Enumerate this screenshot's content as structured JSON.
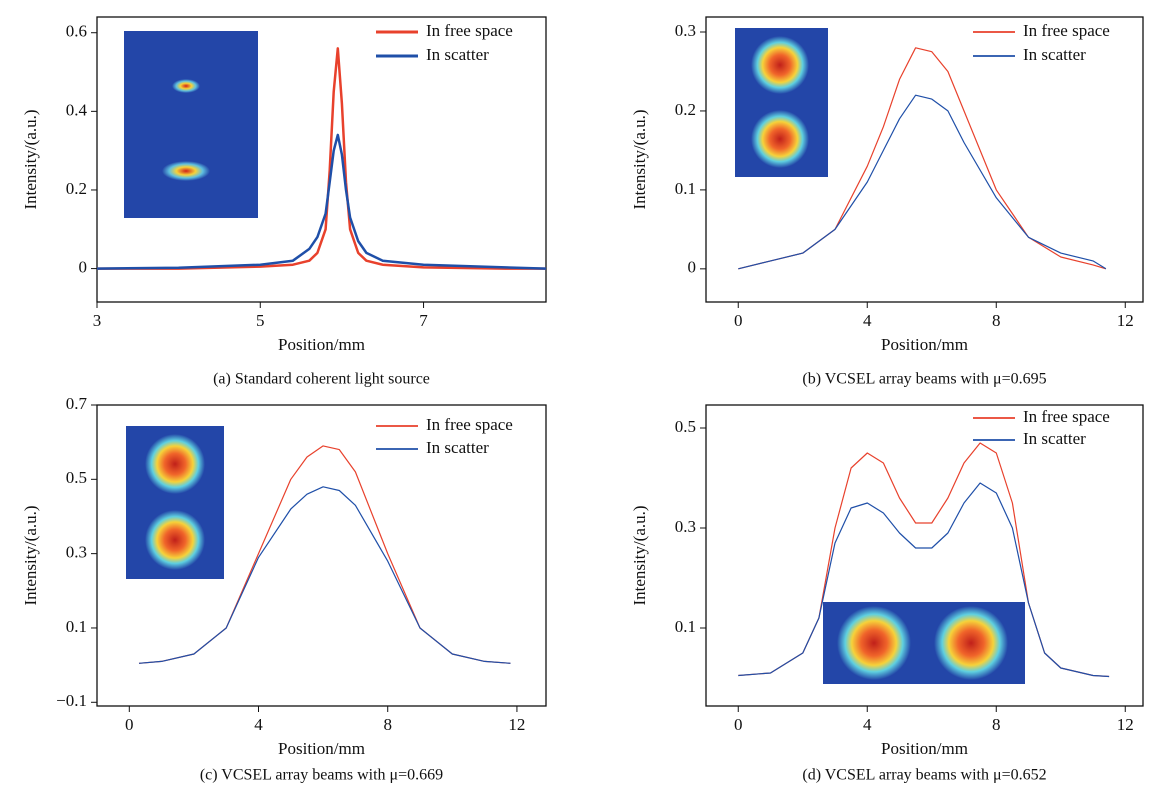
{
  "chart_data": [
    {
      "type": "line",
      "caption": "(a) Standard coherent light source",
      "xlabel": "Position/mm",
      "ylabel": "Intensity/(a.u.)",
      "xlim": [
        3,
        8.5
      ],
      "xticks": [
        3,
        5,
        7
      ],
      "ylim": [
        -0.085,
        0.64
      ],
      "yticks": [
        0,
        0.2,
        0.4,
        0.6
      ],
      "legend": "upper right",
      "line_width": 2.5,
      "x": [
        3,
        4,
        5,
        5.4,
        5.6,
        5.7,
        5.8,
        5.85,
        5.9,
        5.95,
        6.0,
        6.05,
        6.1,
        6.2,
        6.3,
        6.5,
        7,
        8,
        8.5
      ],
      "series": [
        {
          "name": "In free space",
          "color": "#e8412c",
          "values": [
            0,
            0,
            0.005,
            0.01,
            0.02,
            0.04,
            0.1,
            0.25,
            0.45,
            0.56,
            0.42,
            0.22,
            0.1,
            0.04,
            0.02,
            0.01,
            0.003,
            0,
            0
          ]
        },
        {
          "name": "In scatter",
          "color": "#1f4fa8",
          "values": [
            0,
            0.002,
            0.01,
            0.02,
            0.05,
            0.08,
            0.14,
            0.22,
            0.3,
            0.34,
            0.29,
            0.2,
            0.13,
            0.07,
            0.04,
            0.02,
            0.01,
            0.003,
            0
          ]
        }
      ]
    },
    {
      "type": "line",
      "caption": "(b) VCSEL array beams with μ=0.695",
      "xlabel": "Position/mm",
      "ylabel": "Intensity/(a.u.)",
      "xlim": [
        -1,
        12.55
      ],
      "xticks": [
        0,
        4,
        8,
        12
      ],
      "ylim": [
        -0.042,
        0.319
      ],
      "yticks": [
        0,
        0.1,
        0.2,
        0.3
      ],
      "legend": "upper right",
      "line_width": 1.2,
      "x": [
        0,
        1,
        2,
        3,
        4,
        4.5,
        5,
        5.5,
        6,
        6.5,
        7,
        8,
        9,
        10,
        11,
        11.4
      ],
      "series": [
        {
          "name": "In free space",
          "color": "#e8412c",
          "values": [
            0,
            0.01,
            0.02,
            0.05,
            0.13,
            0.18,
            0.24,
            0.28,
            0.275,
            0.25,
            0.2,
            0.1,
            0.04,
            0.015,
            0.005,
            0
          ]
        },
        {
          "name": "In scatter",
          "color": "#1f4fa8",
          "values": [
            0,
            0.01,
            0.02,
            0.05,
            0.11,
            0.15,
            0.19,
            0.22,
            0.215,
            0.2,
            0.16,
            0.09,
            0.04,
            0.02,
            0.01,
            0
          ]
        }
      ]
    },
    {
      "type": "line",
      "caption": "(c) VCSEL array beams with μ=0.669",
      "xlabel": "Position/mm",
      "ylabel": "Intensity/(a.u.)",
      "xlim": [
        -1,
        12.9
      ],
      "xticks": [
        0,
        4,
        8,
        12
      ],
      "ylim": [
        -0.11,
        0.7
      ],
      "yticks": [
        {
          "value": -0.1,
          "label": "−0.1"
        },
        0.1,
        0.3,
        0.5,
        0.7
      ],
      "legend": "upper right",
      "line_width": 1.2,
      "x": [
        0.3,
        1,
        2,
        3,
        4,
        5,
        5.5,
        6,
        6.5,
        7,
        8,
        9,
        10,
        11,
        11.8
      ],
      "series": [
        {
          "name": "In free space",
          "color": "#e8412c",
          "values": [
            0.005,
            0.01,
            0.03,
            0.1,
            0.3,
            0.5,
            0.56,
            0.59,
            0.58,
            0.52,
            0.3,
            0.1,
            0.03,
            0.01,
            0.005
          ]
        },
        {
          "name": "In scatter",
          "color": "#1f4fa8",
          "values": [
            0.005,
            0.01,
            0.03,
            0.1,
            0.29,
            0.42,
            0.46,
            0.48,
            0.47,
            0.43,
            0.28,
            0.1,
            0.03,
            0.01,
            0.005
          ]
        }
      ]
    },
    {
      "type": "line",
      "caption": "(d) VCSEL array beams with μ=0.652",
      "xlabel": "Position/mm",
      "ylabel": "Intensity/(a.u.)",
      "xlim": [
        -1,
        12.55
      ],
      "xticks": [
        0,
        4,
        8,
        12
      ],
      "ylim": [
        -0.056,
        0.546
      ],
      "yticks": [
        0.1,
        0.3,
        0.5
      ],
      "legend": "upper right",
      "line_width": 1.2,
      "x": [
        0,
        1,
        2,
        2.5,
        3,
        3.5,
        4,
        4.5,
        5,
        5.5,
        6,
        6.5,
        7,
        7.5,
        8,
        8.5,
        9,
        9.5,
        10,
        11,
        11.5
      ],
      "series": [
        {
          "name": "In free space",
          "color": "#e8412c",
          "values": [
            0.005,
            0.01,
            0.05,
            0.12,
            0.3,
            0.42,
            0.45,
            0.43,
            0.36,
            0.31,
            0.31,
            0.36,
            0.43,
            0.47,
            0.45,
            0.35,
            0.15,
            0.05,
            0.02,
            0.005,
            0.003
          ]
        },
        {
          "name": "In scatter",
          "color": "#1f4fa8",
          "values": [
            0.005,
            0.01,
            0.05,
            0.12,
            0.27,
            0.34,
            0.35,
            0.33,
            0.29,
            0.26,
            0.26,
            0.29,
            0.35,
            0.39,
            0.37,
            0.3,
            0.15,
            0.05,
            0.02,
            0.005,
            0.003
          ]
        }
      ]
    }
  ]
}
